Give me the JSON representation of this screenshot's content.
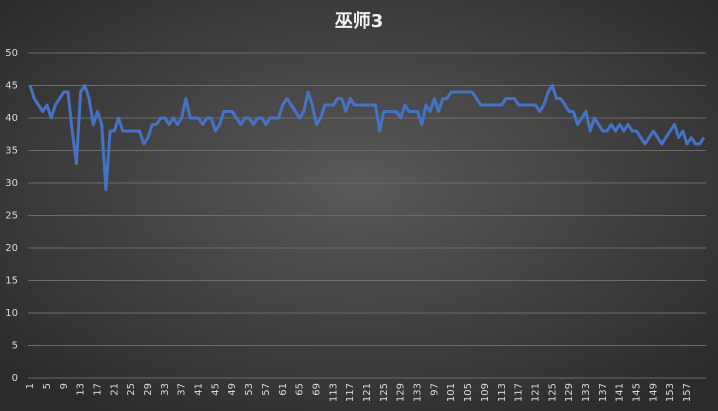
{
  "chart_data": {
    "type": "line",
    "title": "巫师3",
    "categories": [
      "1",
      null,
      null,
      null,
      "5",
      null,
      null,
      null,
      "9",
      null,
      null,
      null,
      "13",
      null,
      null,
      null,
      "17",
      null,
      null,
      null,
      "21",
      null,
      null,
      null,
      "25",
      null,
      null,
      null,
      "29",
      null,
      null,
      null,
      "33",
      null,
      null,
      null,
      "37",
      null,
      null,
      null,
      "41",
      null,
      null,
      null,
      "45",
      null,
      null,
      null,
      "49",
      null,
      null,
      null,
      "53",
      null,
      null,
      null,
      "57",
      null,
      null,
      null,
      "61",
      null,
      null,
      null,
      "65",
      null,
      null,
      null,
      "69",
      null,
      null,
      null,
      "113",
      null,
      null,
      null,
      "117",
      null,
      null,
      null,
      "121",
      null,
      null,
      null,
      "125",
      null,
      null,
      null,
      "129",
      null,
      null,
      null,
      "133",
      null,
      null,
      null,
      "97",
      null,
      null,
      null,
      "101",
      null,
      null,
      null,
      "105",
      null,
      null,
      null,
      "109",
      null,
      null,
      null,
      "113",
      null,
      null,
      null,
      "117",
      null,
      null,
      null,
      "121",
      null,
      null,
      null,
      "125",
      null,
      null,
      null,
      "129",
      null,
      null,
      null,
      "133",
      null,
      null,
      null,
      "137",
      null,
      null,
      null,
      "141",
      null,
      null,
      null,
      "145",
      null,
      null,
      null,
      "149",
      null,
      null,
      null,
      "153",
      null,
      null,
      null,
      "157",
      null,
      null,
      null,
      null
    ],
    "values": [
      45,
      43,
      42,
      41,
      42,
      40,
      42,
      43,
      44,
      44,
      38,
      33,
      44,
      45,
      43,
      39,
      41,
      39,
      29,
      38,
      38,
      40,
      38,
      38,
      38,
      38,
      38,
      36,
      37,
      39,
      39,
      40,
      40,
      39,
      40,
      39,
      40,
      43,
      40,
      40,
      40,
      39,
      40,
      40,
      38,
      39,
      41,
      41,
      41,
      40,
      39,
      40,
      40,
      39,
      40,
      40,
      39,
      40,
      40,
      40,
      42,
      43,
      42,
      41,
      40,
      41,
      44,
      42,
      39,
      40,
      42,
      42,
      42,
      43,
      43,
      41,
      43,
      42,
      42,
      42,
      42,
      42,
      42,
      38,
      41,
      41,
      41,
      41,
      40,
      42,
      41,
      41,
      41,
      39,
      42,
      41,
      43,
      41,
      43,
      43,
      44,
      44,
      44,
      44,
      44,
      44,
      43,
      42,
      42,
      42,
      42,
      42,
      42,
      43,
      43,
      43,
      42,
      42,
      42,
      42,
      42,
      41,
      42,
      44,
      45,
      43,
      43,
      42,
      41,
      41,
      39,
      40,
      41,
      38,
      40,
      39,
      38,
      38,
      39,
      38,
      39,
      38,
      39,
      38,
      38,
      37,
      36,
      37,
      38,
      37,
      36,
      37,
      38,
      39,
      37,
      38,
      36,
      37,
      36,
      36,
      37
    ],
    "color": "#4472c4",
    "ylim": [
      0,
      50
    ],
    "yticks": [
      0,
      5,
      10,
      15,
      20,
      25,
      30,
      35,
      40,
      45,
      50
    ],
    "grid": true
  }
}
